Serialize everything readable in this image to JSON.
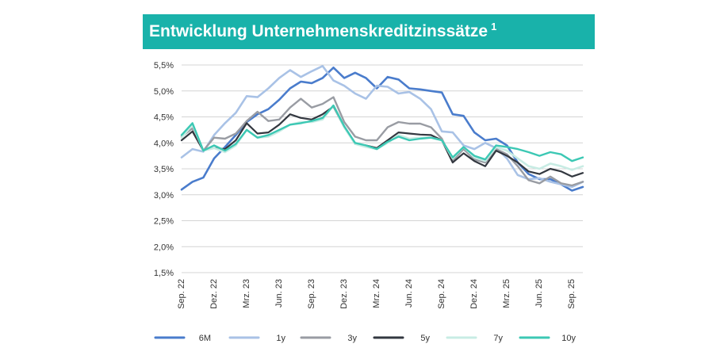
{
  "chart_data": {
    "type": "line",
    "title": "Entwicklung Unternehmenskreditzinssätze",
    "title_footnote": "1",
    "xlabel": "",
    "ylabel": "",
    "ylim": [
      1.5,
      5.5
    ],
    "y_ticks": [
      "5,5%",
      "5,0%",
      "4,5%",
      "4,0%",
      "3,5%",
      "3,0%",
      "2,5%",
      "2,0%",
      "1,5%"
    ],
    "y_tick_values": [
      5.5,
      5.0,
      4.5,
      4.0,
      3.5,
      3.0,
      2.5,
      2.0,
      1.5
    ],
    "x_tick_labels": [
      "Sep. 22",
      "Dez. 22",
      "Mrz. 23",
      "Jun. 23",
      "Sep. 23",
      "Dez. 23",
      "Mrz. 24",
      "Jun. 24",
      "Sep. 24",
      "Dez. 24",
      "Mrz. 25",
      "Jun. 25",
      "Sep. 25"
    ],
    "x_tick_index": [
      0,
      3,
      6,
      9,
      12,
      15,
      18,
      21,
      24,
      27,
      30,
      33,
      36
    ],
    "grid": true,
    "legend_position": "bottom",
    "series": [
      {
        "name": "6M",
        "color": "#4a7ccc",
        "width": 2.6,
        "values": [
          3.1,
          3.25,
          3.33,
          3.7,
          3.92,
          4.15,
          4.4,
          4.55,
          4.65,
          4.83,
          5.05,
          5.18,
          5.15,
          5.25,
          5.45,
          5.25,
          5.35,
          5.25,
          5.05,
          5.27,
          5.22,
          5.05,
          5.03,
          5.0,
          4.97,
          4.55,
          4.52,
          4.2,
          4.05,
          4.08,
          3.95,
          3.62,
          3.4,
          3.3,
          3.3,
          3.2,
          3.08,
          3.15
        ]
      },
      {
        "name": "1y",
        "color": "#a9c2e6",
        "width": 2.6,
        "values": [
          3.72,
          3.88,
          3.83,
          4.15,
          4.38,
          4.58,
          4.9,
          4.88,
          5.05,
          5.25,
          5.4,
          5.27,
          5.38,
          5.48,
          5.2,
          5.1,
          4.95,
          4.85,
          5.1,
          5.08,
          4.95,
          4.98,
          4.85,
          4.65,
          4.22,
          4.2,
          3.95,
          3.88,
          4.0,
          3.9,
          3.7,
          3.38,
          3.3,
          3.32,
          3.25,
          3.2,
          3.15,
          3.25
        ]
      },
      {
        "name": "3y",
        "color": "#999ca3",
        "width": 2.4,
        "values": [
          4.12,
          4.28,
          3.85,
          4.1,
          4.08,
          4.18,
          4.42,
          4.6,
          4.42,
          4.45,
          4.68,
          4.85,
          4.68,
          4.75,
          4.88,
          4.4,
          4.12,
          4.05,
          4.05,
          4.3,
          4.4,
          4.37,
          4.37,
          4.3,
          4.08,
          3.65,
          3.88,
          3.68,
          3.62,
          3.88,
          3.78,
          3.55,
          3.28,
          3.22,
          3.35,
          3.22,
          3.18,
          3.25
        ]
      },
      {
        "name": "5y",
        "color": "#333840",
        "width": 2.2,
        "values": [
          4.05,
          4.22,
          3.85,
          3.9,
          3.88,
          4.05,
          4.38,
          4.18,
          4.2,
          4.35,
          4.55,
          4.48,
          4.45,
          4.55,
          4.7,
          4.3,
          3.98,
          3.95,
          3.9,
          4.05,
          4.2,
          4.18,
          4.16,
          4.15,
          4.05,
          3.62,
          3.8,
          3.65,
          3.55,
          3.85,
          3.75,
          3.62,
          3.45,
          3.4,
          3.5,
          3.45,
          3.35,
          3.42
        ]
      },
      {
        "name": "7y",
        "color": "#c8ece4",
        "width": 2.6,
        "values": [
          4.1,
          4.35,
          3.85,
          3.9,
          3.82,
          3.95,
          4.25,
          4.1,
          4.12,
          4.22,
          4.35,
          4.4,
          4.4,
          4.45,
          4.72,
          4.3,
          3.98,
          3.92,
          3.88,
          4.0,
          4.15,
          4.08,
          4.1,
          4.1,
          4.05,
          3.7,
          3.92,
          3.72,
          3.65,
          3.92,
          3.85,
          3.7,
          3.55,
          3.5,
          3.6,
          3.55,
          3.48,
          3.55
        ]
      },
      {
        "name": "10y",
        "color": "#3cc8b4",
        "width": 2.4,
        "values": [
          4.15,
          4.38,
          3.85,
          3.95,
          3.85,
          3.98,
          4.25,
          4.1,
          4.15,
          4.25,
          4.35,
          4.38,
          4.42,
          4.48,
          4.72,
          4.32,
          4.0,
          3.95,
          3.88,
          4.02,
          4.12,
          4.05,
          4.08,
          4.1,
          4.05,
          3.72,
          3.92,
          3.75,
          3.68,
          3.95,
          3.92,
          3.88,
          3.82,
          3.75,
          3.82,
          3.78,
          3.65,
          3.72
        ]
      }
    ]
  }
}
